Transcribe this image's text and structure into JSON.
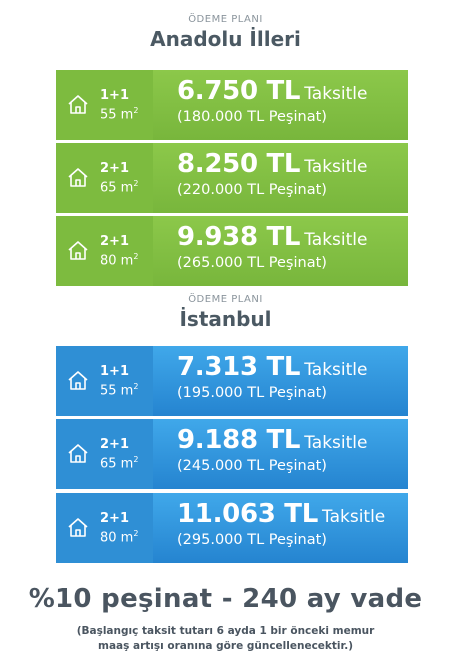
{
  "sections": [
    {
      "eyebrow": "ÖDEME PLANI",
      "region": "Anadolu İlleri",
      "theme": "#7dbb3f",
      "plans": [
        {
          "rooms": "1+1",
          "size": "55 m",
          "size_unit_sup": "2",
          "price": "6.750 TL",
          "taksit": "Taksitle",
          "pesinat": "(180.000 TL Peşinat)"
        },
        {
          "rooms": "2+1",
          "size": "65 m",
          "size_unit_sup": "2",
          "price": "8.250 TL",
          "taksit": "Taksitle",
          "pesinat": "(220.000 TL Peşinat)"
        },
        {
          "rooms": "2+1",
          "size": "80 m",
          "size_unit_sup": "2",
          "price": "9.938 TL",
          "taksit": "Taksitle",
          "pesinat": "(265.000 TL Peşinat)"
        }
      ]
    },
    {
      "eyebrow": "ÖDEME PLANI",
      "region": "İstanbul",
      "theme": "#2f8fd5",
      "plans": [
        {
          "rooms": "1+1",
          "size": "55 m",
          "size_unit_sup": "2",
          "price": "7.313 TL",
          "taksit": "Taksitle",
          "pesinat": "(195.000 TL Peşinat)"
        },
        {
          "rooms": "2+1",
          "size": "65 m",
          "size_unit_sup": "2",
          "price": "9.188 TL",
          "taksit": "Taksitle",
          "pesinat": "(245.000 TL Peşinat)"
        },
        {
          "rooms": "2+1",
          "size": "80 m",
          "size_unit_sup": "2",
          "price": "11.063 TL",
          "taksit": "Taksitle",
          "pesinat": "(295.000 TL Peşinat)"
        }
      ]
    }
  ],
  "icon": "house-icon",
  "footer": {
    "headline": "%10 peşinat - 240 ay vade",
    "note_line1": "(Başlangıç taksit tutarı 6 ayda 1 bir önceki memur",
    "note_line2": "maaş artışı oranına göre güncellenecektir.)"
  }
}
